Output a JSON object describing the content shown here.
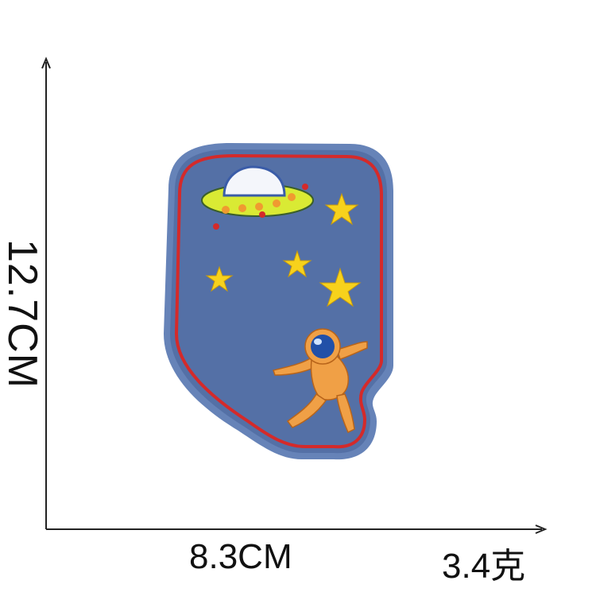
{
  "dimensions": {
    "height_label": "12.7CM",
    "width_label": "8.3CM",
    "weight_label": "3.4克"
  },
  "colors": {
    "denim": "#5470a6",
    "border": "#d42a2a",
    "star": "#f7d21c",
    "ufo_body": "#d9ea34",
    "astronaut": "#f0a046",
    "helmet": "#2150a8"
  },
  "icons": [
    "ufo-icon",
    "star-icon",
    "astronaut-icon"
  ]
}
